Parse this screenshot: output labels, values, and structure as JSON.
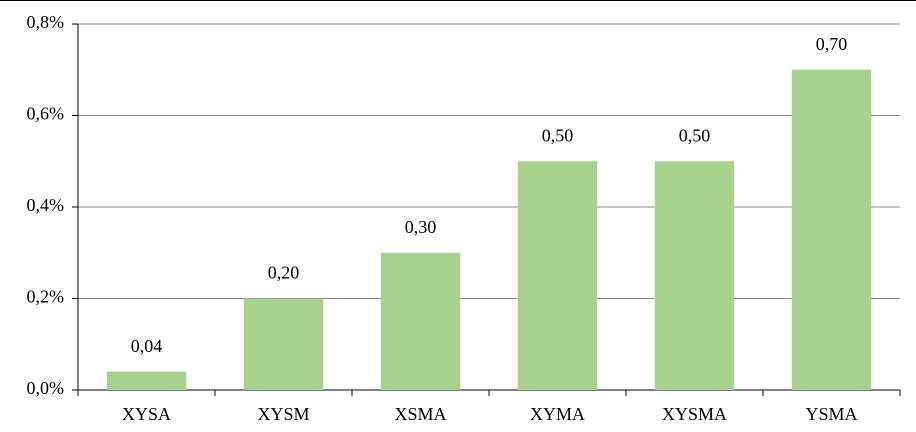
{
  "chart_data": {
    "type": "bar",
    "categories": [
      "XYSA",
      "XYSM",
      "XSMA",
      "XYMA",
      "XYSMA",
      "YSMA"
    ],
    "values": [
      0.04,
      0.2,
      0.3,
      0.5,
      0.5,
      0.7
    ],
    "value_labels": [
      "0,04",
      "0,20",
      "0,30",
      "0,50",
      "0,50",
      "0,70"
    ],
    "color": "#a9d18e",
    "ylim": [
      0,
      0.8
    ],
    "yticks": [
      {
        "value": 0,
        "label": "0,0%"
      },
      {
        "value": 0.2,
        "label": "0,2%"
      },
      {
        "value": 0.4,
        "label": "0,4%"
      },
      {
        "value": 0.6,
        "label": "0,6%"
      },
      {
        "value": 0.8,
        "label": "0,8%"
      }
    ],
    "grid": true
  }
}
